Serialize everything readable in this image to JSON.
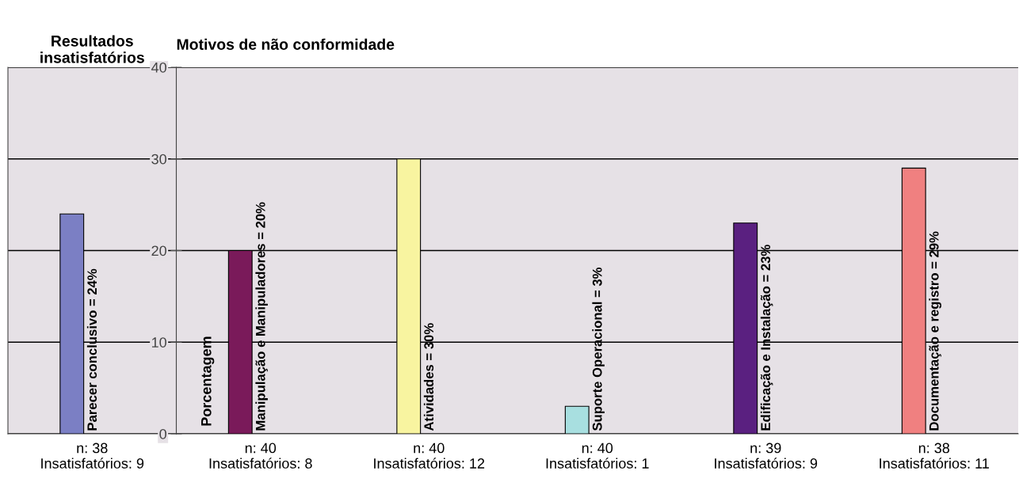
{
  "chart_data": [
    {
      "type": "bar",
      "title": "Resultados\ninsatisfatórios",
      "categories": [
        "n: 38\nInsatisfatórios: 9"
      ],
      "values": [
        24
      ],
      "colors": [
        "#7b7fc4"
      ],
      "value_labels": [
        "Parecer conclusivo = 24%"
      ],
      "ylim": [
        0,
        40
      ],
      "yticks": [
        0,
        10,
        20,
        30,
        40
      ],
      "grid": "y",
      "tick_labels": "x"
    },
    {
      "type": "bar",
      "title": "Motivos de não conformidade",
      "ylabel": "Porcentagem",
      "categories": [
        "n: 40\nInsatisfatórios: 8",
        "n: 40\nInsatisfatórios: 12",
        "n: 40\nInsatisfatórios: 1",
        "n: 39\nInsatisfatórios: 9",
        "n: 38\nInsatisfatórios: 11"
      ],
      "values": [
        20,
        30,
        3,
        23,
        29
      ],
      "colors": [
        "#7a1a5a",
        "#f8f4a0",
        "#a8dfe0",
        "#5a2080",
        "#f08080"
      ],
      "value_labels": [
        "Manipulação e Manipuladores = 20%",
        "Atividades = 30%",
        "Suporte Operacional = 3%",
        "Edificação e Instalação = 23%",
        "Documentação e registro = 29%"
      ],
      "ylim": [
        0,
        40
      ],
      "yticks": [
        0,
        10,
        20,
        30,
        40
      ],
      "grid": "y"
    }
  ]
}
